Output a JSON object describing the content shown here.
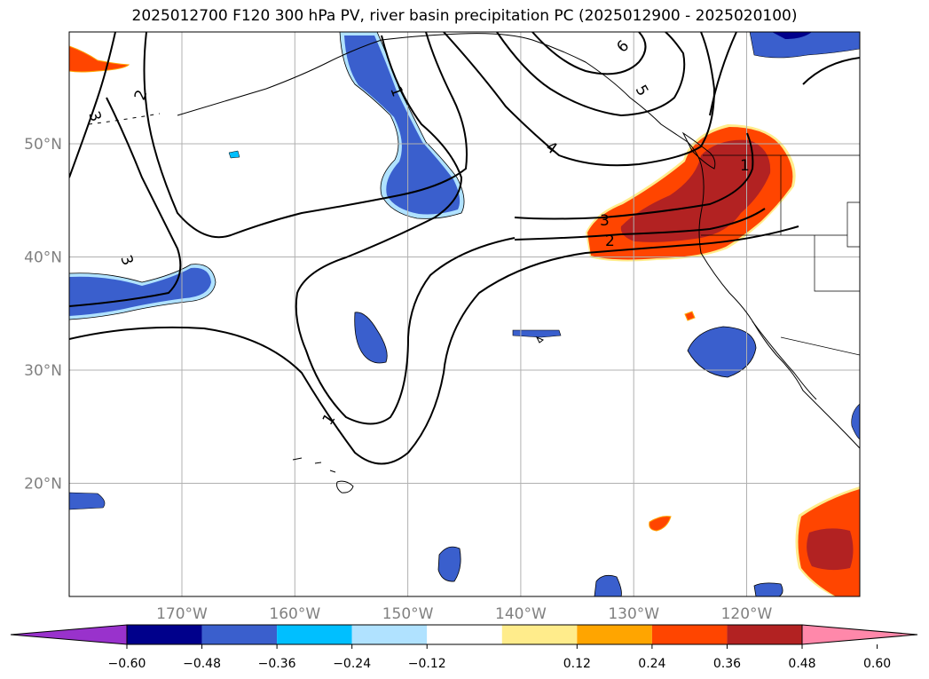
{
  "title": "2025012700 F120 300 hPa PV, river basin precipitation PC (2025012900 - 2025020100)",
  "map": {
    "lon_ticks": [
      {
        "lon": -170,
        "label": "170°W"
      },
      {
        "lon": -160,
        "label": "160°W"
      },
      {
        "lon": -150,
        "label": "150°W"
      },
      {
        "lon": -140,
        "label": "140°W"
      },
      {
        "lon": -130,
        "label": "130°W"
      },
      {
        "lon": -120,
        "label": "120°W"
      }
    ],
    "lat_ticks": [
      {
        "lat": 50,
        "label": "50°N"
      },
      {
        "lat": 40,
        "label": "40°N"
      },
      {
        "lat": 30,
        "label": "30°N"
      },
      {
        "lat": 20,
        "label": "20°N"
      }
    ],
    "pv_contour_labels": [
      {
        "text": "1"
      },
      {
        "text": "2"
      },
      {
        "text": "3"
      },
      {
        "text": "4"
      },
      {
        "text": "5"
      },
      {
        "text": "6"
      }
    ]
  },
  "colorbar": {
    "colors": [
      "#9932CC",
      "#00008B",
      "#3A5FCD",
      "#00BFFF",
      "#B0E2FF",
      "#FFFFFF",
      "#FFEC8B",
      "#FFA500",
      "#FF4500",
      "#B22222",
      "#FF88AA"
    ],
    "ticks": [
      {
        "value": -0.6,
        "label": "−0.60"
      },
      {
        "value": -0.48,
        "label": "−0.48"
      },
      {
        "value": -0.36,
        "label": "−0.36"
      },
      {
        "value": -0.24,
        "label": "−0.24"
      },
      {
        "value": -0.12,
        "label": "−0.12"
      },
      {
        "value": 0.12,
        "label": "0.12"
      },
      {
        "value": 0.24,
        "label": "0.24"
      },
      {
        "value": 0.36,
        "label": "0.36"
      },
      {
        "value": 0.48,
        "label": "0.48"
      },
      {
        "value": 0.6,
        "label": "0.60"
      }
    ]
  },
  "colors": {
    "grid": "#b0b0b0",
    "contour": "#000000",
    "coast": "#000000"
  }
}
